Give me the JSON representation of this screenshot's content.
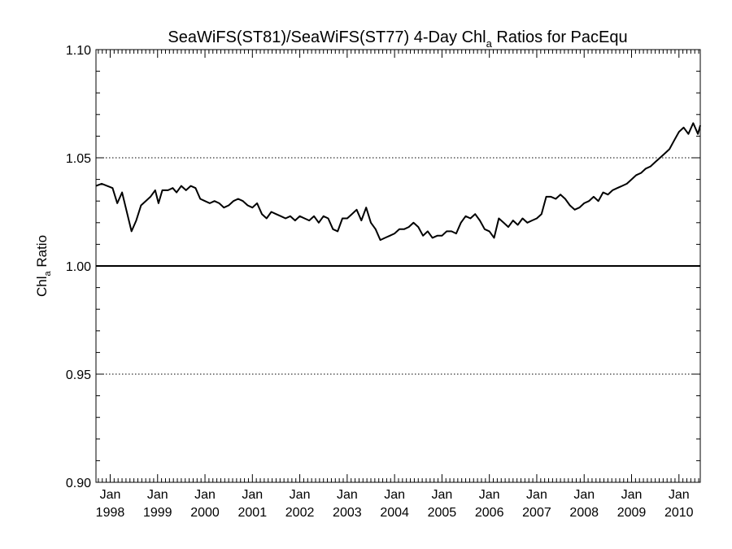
{
  "chart_data": {
    "type": "line",
    "title_main": "SeaWiFS(ST81)/SeaWiFS(ST77) 4-Day Chl",
    "title_sub": "a",
    "title_tail": " Ratios for PacEqu",
    "ylabel_main": "Chl",
    "ylabel_sub": "a",
    "ylabel_tail": " Ratio",
    "ylim": [
      0.9,
      1.1
    ],
    "xlim": [
      1997.7,
      2010.45
    ],
    "yticks": [
      "0.90",
      "0.95",
      "1.00",
      "1.05",
      "1.10"
    ],
    "x_tick_labels": [
      {
        "month": "Jan",
        "year": "1998"
      },
      {
        "month": "Jan",
        "year": "1999"
      },
      {
        "month": "Jan",
        "year": "2000"
      },
      {
        "month": "Jan",
        "year": "2001"
      },
      {
        "month": "Jan",
        "year": "2002"
      },
      {
        "month": "Jan",
        "year": "2003"
      },
      {
        "month": "Jan",
        "year": "2004"
      },
      {
        "month": "Jan",
        "year": "2005"
      },
      {
        "month": "Jan",
        "year": "2006"
      },
      {
        "month": "Jan",
        "year": "2007"
      },
      {
        "month": "Jan",
        "year": "2008"
      },
      {
        "month": "Jan",
        "year": "2009"
      },
      {
        "month": "Jan",
        "year": "2010"
      }
    ],
    "grid": "dotted horizontal at 0.95 and 1.05",
    "reference_line": 1.0,
    "series": [
      {
        "color": "#000000",
        "x": [
          1997.7,
          1997.82,
          1998.05,
          1998.15,
          1998.25,
          1998.35,
          1998.45,
          1998.55,
          1998.65,
          1998.75,
          1998.85,
          1998.95,
          1999.02,
          1999.1,
          1999.22,
          1999.32,
          1999.4,
          1999.5,
          1999.6,
          1999.7,
          1999.8,
          1999.9,
          2000.0,
          2000.1,
          2000.2,
          2000.3,
          2000.4,
          2000.5,
          2000.6,
          2000.7,
          2000.8,
          2000.9,
          2001.0,
          2001.1,
          2001.2,
          2001.3,
          2001.4,
          2001.5,
          2001.6,
          2001.7,
          2001.8,
          2001.9,
          2002.0,
          2002.1,
          2002.2,
          2002.3,
          2002.4,
          2002.5,
          2002.6,
          2002.7,
          2002.8,
          2002.9,
          2003.0,
          2003.1,
          2003.2,
          2003.3,
          2003.4,
          2003.5,
          2003.6,
          2003.7,
          2003.8,
          2003.9,
          2004.0,
          2004.1,
          2004.2,
          2004.3,
          2004.4,
          2004.5,
          2004.6,
          2004.7,
          2004.8,
          2004.9,
          2005.0,
          2005.1,
          2005.2,
          2005.3,
          2005.4,
          2005.5,
          2005.6,
          2005.7,
          2005.8,
          2005.9,
          2006.0,
          2006.1,
          2006.2,
          2006.3,
          2006.4,
          2006.5,
          2006.6,
          2006.7,
          2006.8,
          2006.9,
          2007.0,
          2007.1,
          2007.2,
          2007.3,
          2007.4,
          2007.5,
          2007.6,
          2007.7,
          2007.8,
          2007.9,
          2008.0,
          2008.1,
          2008.2,
          2008.3,
          2008.4,
          2008.5,
          2008.6,
          2008.7,
          2008.8,
          2008.9,
          2009.0,
          2009.1,
          2009.2,
          2009.3,
          2009.4,
          2009.5,
          2009.6,
          2009.7,
          2009.8,
          2009.9,
          2010.0,
          2010.1,
          2010.2,
          2010.3,
          2010.4,
          2010.45
        ],
        "y": [
          1.037,
          1.038,
          1.036,
          1.029,
          1.034,
          1.025,
          1.016,
          1.021,
          1.028,
          1.03,
          1.032,
          1.035,
          1.029,
          1.035,
          1.035,
          1.036,
          1.034,
          1.037,
          1.035,
          1.037,
          1.036,
          1.031,
          1.03,
          1.029,
          1.03,
          1.029,
          1.027,
          1.028,
          1.03,
          1.031,
          1.03,
          1.028,
          1.027,
          1.029,
          1.024,
          1.022,
          1.025,
          1.024,
          1.023,
          1.022,
          1.023,
          1.021,
          1.023,
          1.022,
          1.021,
          1.023,
          1.02,
          1.023,
          1.022,
          1.017,
          1.016,
          1.022,
          1.022,
          1.024,
          1.026,
          1.021,
          1.027,
          1.02,
          1.017,
          1.012,
          1.013,
          1.014,
          1.015,
          1.017,
          1.017,
          1.018,
          1.02,
          1.018,
          1.014,
          1.016,
          1.013,
          1.014,
          1.014,
          1.016,
          1.016,
          1.015,
          1.02,
          1.023,
          1.022,
          1.024,
          1.021,
          1.017,
          1.016,
          1.013,
          1.022,
          1.02,
          1.018,
          1.021,
          1.019,
          1.022,
          1.02,
          1.021,
          1.022,
          1.024,
          1.032,
          1.032,
          1.031,
          1.033,
          1.031,
          1.028,
          1.026,
          1.027,
          1.029,
          1.03,
          1.032,
          1.03,
          1.034,
          1.033,
          1.035,
          1.036,
          1.037,
          1.038,
          1.04,
          1.042,
          1.043,
          1.045,
          1.046,
          1.048,
          1.05,
          1.052,
          1.054,
          1.058,
          1.062,
          1.064,
          1.061,
          1.066,
          1.061,
          1.065
        ]
      }
    ]
  }
}
